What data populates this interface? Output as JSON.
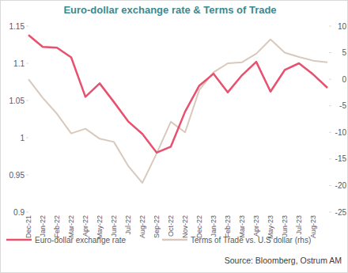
{
  "chart_data": {
    "type": "line",
    "title": "Euro-dollar exchange rate & Terms of Trade",
    "source": "Source: Bloomberg, Ostrum AM",
    "categories": [
      "Dec-21",
      "Jan-22",
      "Feb-22",
      "Mar-22",
      "Apr-22",
      "May-22",
      "Jun-22",
      "Jul-22",
      "Aug-22",
      "Sep-22",
      "Oct-22",
      "Nov-22",
      "Dec-22",
      "Jan-23",
      "Feb-23",
      "Mar-23",
      "Apr-23",
      "May-23",
      "Jun-23",
      "Jul-23",
      "Aug-23",
      null
    ],
    "series": [
      {
        "name": "Euro-dollar exchange rate",
        "color": "#e8506e",
        "values": [
          1.138,
          1.122,
          1.121,
          1.108,
          1.055,
          1.073,
          1.048,
          1.022,
          1.005,
          0.98,
          0.988,
          1.035,
          1.07,
          1.086,
          1.061,
          1.084,
          1.102,
          1.062,
          1.091,
          1.1,
          1.085,
          1.067
        ]
      },
      {
        "name": "Terms of Trade vs. U.S dollar (rhs)",
        "color": "#d9c9bc",
        "axis": "y2",
        "values": [
          0,
          -3.5,
          -6.5,
          -10.2,
          -9.3,
          -11.2,
          -11.8,
          -16.3,
          -19.5,
          -14,
          -8,
          -10,
          -2,
          1.3,
          3,
          3.2,
          4.8,
          7.5,
          5,
          4.2,
          3.5,
          3.2
        ]
      }
    ],
    "ylim": [
      0.9,
      1.15
    ],
    "yticks": [
      0.9,
      0.95,
      1,
      1.05,
      1.1,
      1.15
    ],
    "y2lim": [
      -25,
      10
    ],
    "y2ticks": [
      -25,
      -20,
      -15,
      -10,
      -5,
      0,
      5,
      10
    ],
    "legend": "bottom",
    "grid": false
  }
}
